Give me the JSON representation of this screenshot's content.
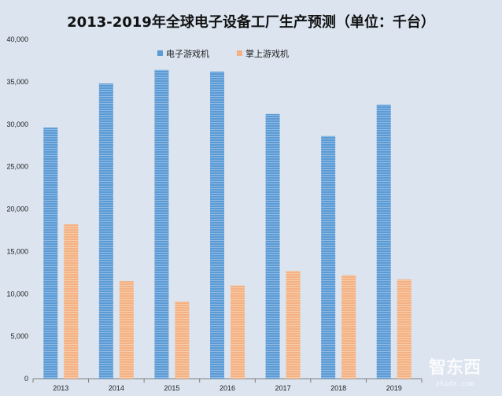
{
  "chart_data": {
    "type": "bar",
    "title": "2013-2019年全球电子设备工厂生产预测（单位：千台）",
    "categories": [
      "2013",
      "2014",
      "2015",
      "2016",
      "2017",
      "2018",
      "2019"
    ],
    "series": [
      {
        "name": "电子游戏机",
        "values": [
          29600,
          34800,
          36400,
          36200,
          31200,
          28600,
          32300
        ],
        "color": "#5b9bd5"
      },
      {
        "name": "掌上游戏机",
        "values": [
          18200,
          11500,
          9100,
          11000,
          12700,
          12200,
          11700
        ],
        "color": "#f4b183"
      }
    ],
    "ylim": [
      0,
      40000
    ],
    "yticks": [
      "0",
      "5,000",
      "10,000",
      "15,000",
      "20,000",
      "25,000",
      "30,000",
      "35,000",
      "40,000"
    ],
    "grid": false,
    "legend_position": "top-center"
  },
  "watermark": {
    "text": "智东西",
    "sub": "zhidx.com"
  }
}
